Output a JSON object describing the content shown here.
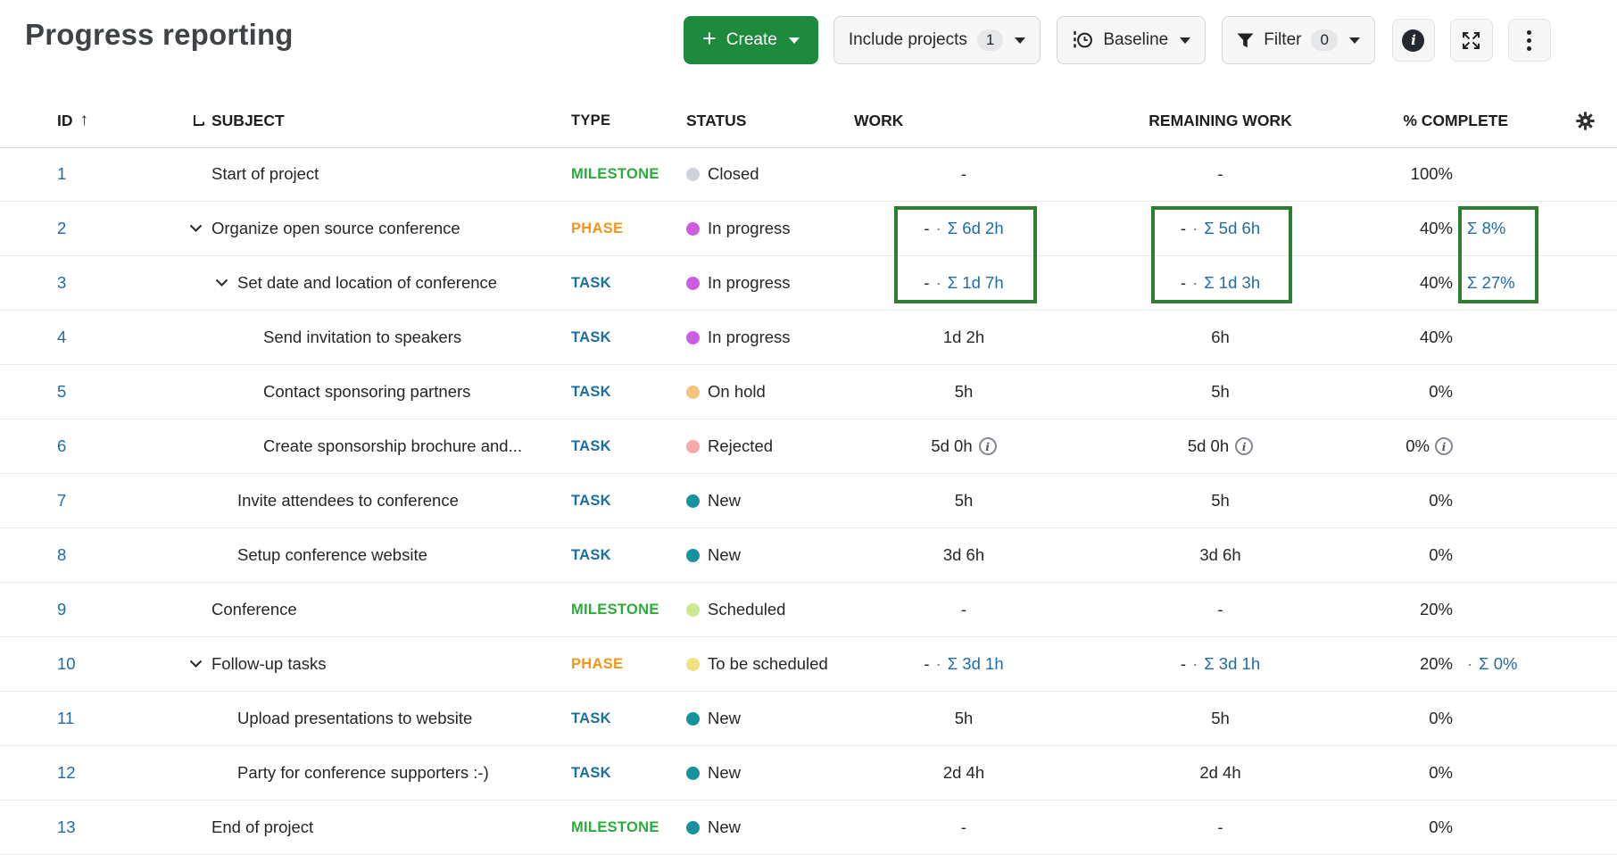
{
  "title": "Progress reporting",
  "toolbar": {
    "create_label": "Create",
    "include_projects_label": "Include projects",
    "include_projects_count": "1",
    "baseline_label": "Baseline",
    "filter_label": "Filter",
    "filter_count": "0",
    "icon_buttons": [
      "info-icon",
      "fullscreen-icon",
      "more-icon"
    ]
  },
  "columns": {
    "id": "ID",
    "subject": "SUBJECT",
    "type": "TYPE",
    "status": "STATUS",
    "work": "WORK",
    "remaining": "REMAINING WORK",
    "percent": "% COMPLETE"
  },
  "colors": {
    "link_blue": "#1f6ba8",
    "highlight_box_green": "#2e7d30",
    "create_button_green": "#1e8a3e",
    "type": {
      "MILESTONE": "#2cab3c",
      "TASK": "#1a6ea0",
      "PHASE": "#f7941d"
    },
    "status": {
      "closed": "#cfd3d9",
      "in_progress": "#cd5ce0",
      "on_hold": "#f6c37e",
      "rejected": "#f8a9ad",
      "new": "#14939e",
      "scheduled": "#cce891",
      "to_be_scheduled": "#f3e07f"
    }
  },
  "annotations": {
    "highlight_color": "#2e7d30",
    "boxes": [
      "work-sums",
      "remaining-work-sums",
      "percent-complete-sums"
    ]
  },
  "rows": [
    {
      "id": "1",
      "indent": 0,
      "chevron": false,
      "subject": "Start of project",
      "type": "MILESTONE",
      "status": "Closed",
      "status_key": "closed",
      "work": {
        "main": "-"
      },
      "remaining": {
        "main": "-"
      },
      "percent": {
        "main": "100%"
      }
    },
    {
      "id": "2",
      "indent": 0,
      "chevron": true,
      "subject": "Organize open source conference",
      "type": "PHASE",
      "status": "In progress",
      "status_key": "in_progress",
      "work": {
        "main": "-",
        "sep": "·",
        "sum": "Σ 6d 2h"
      },
      "remaining": {
        "main": "-",
        "sep": "·",
        "sum": "Σ 5d 6h"
      },
      "percent": {
        "main": "40%",
        "sum": "Σ 8%"
      }
    },
    {
      "id": "3",
      "indent": 1,
      "chevron": true,
      "subject": "Set date and location of conference",
      "type": "TASK",
      "status": "In progress",
      "status_key": "in_progress",
      "work": {
        "main": "-",
        "sep": "·",
        "sum": "Σ 1d 7h"
      },
      "remaining": {
        "main": "-",
        "sep": "·",
        "sum": "Σ 1d 3h"
      },
      "percent": {
        "main": "40%",
        "sum": "Σ 27%"
      }
    },
    {
      "id": "4",
      "indent": 2,
      "chevron": false,
      "subject": "Send invitation to speakers",
      "type": "TASK",
      "status": "In progress",
      "status_key": "in_progress",
      "work": {
        "main": "1d 2h"
      },
      "remaining": {
        "main": "6h"
      },
      "percent": {
        "main": "40%"
      }
    },
    {
      "id": "5",
      "indent": 2,
      "chevron": false,
      "subject": "Contact sponsoring partners",
      "type": "TASK",
      "status": "On hold",
      "status_key": "on_hold",
      "work": {
        "main": "5h"
      },
      "remaining": {
        "main": "5h"
      },
      "percent": {
        "main": "0%"
      }
    },
    {
      "id": "6",
      "indent": 2,
      "chevron": false,
      "subject": "Create sponsorship brochure and...",
      "type": "TASK",
      "status": "Rejected",
      "status_key": "rejected",
      "work": {
        "main": "5d 0h",
        "info": true
      },
      "remaining": {
        "main": "5d 0h",
        "info": true
      },
      "percent": {
        "main": "0%",
        "info": true
      }
    },
    {
      "id": "7",
      "indent": 1,
      "chevron": false,
      "subject": "Invite attendees to conference",
      "type": "TASK",
      "status": "New",
      "status_key": "new",
      "work": {
        "main": "5h"
      },
      "remaining": {
        "main": "5h"
      },
      "percent": {
        "main": "0%"
      }
    },
    {
      "id": "8",
      "indent": 1,
      "chevron": false,
      "subject": "Setup conference website",
      "type": "TASK",
      "status": "New",
      "status_key": "new",
      "work": {
        "main": "3d 6h"
      },
      "remaining": {
        "main": "3d 6h"
      },
      "percent": {
        "main": "0%"
      }
    },
    {
      "id": "9",
      "indent": 0,
      "chevron": false,
      "subject": "Conference",
      "type": "MILESTONE",
      "status": "Scheduled",
      "status_key": "scheduled",
      "work": {
        "main": "-"
      },
      "remaining": {
        "main": "-"
      },
      "percent": {
        "main": "20%"
      }
    },
    {
      "id": "10",
      "indent": 0,
      "chevron": true,
      "subject": "Follow-up tasks",
      "type": "PHASE",
      "status": "To be scheduled",
      "status_key": "to_be_scheduled",
      "work": {
        "main": "-",
        "sep": "·",
        "sum": "Σ 3d 1h"
      },
      "remaining": {
        "main": "-",
        "sep": "·",
        "sum": "Σ 3d 1h"
      },
      "percent": {
        "main": "20%",
        "sep": "·",
        "sum": "Σ 0%"
      }
    },
    {
      "id": "11",
      "indent": 1,
      "chevron": false,
      "subject": "Upload presentations to website",
      "type": "TASK",
      "status": "New",
      "status_key": "new",
      "work": {
        "main": "5h"
      },
      "remaining": {
        "main": "5h"
      },
      "percent": {
        "main": "0%"
      }
    },
    {
      "id": "12",
      "indent": 1,
      "chevron": false,
      "subject": "Party for conference supporters :-)",
      "type": "TASK",
      "status": "New",
      "status_key": "new",
      "work": {
        "main": "2d 4h"
      },
      "remaining": {
        "main": "2d 4h"
      },
      "percent": {
        "main": "0%"
      }
    },
    {
      "id": "13",
      "indent": 0,
      "chevron": false,
      "subject": "End of project",
      "type": "MILESTONE",
      "status": "New",
      "status_key": "new",
      "work": {
        "main": "-"
      },
      "remaining": {
        "main": "-"
      },
      "percent": {
        "main": "0%"
      }
    }
  ]
}
